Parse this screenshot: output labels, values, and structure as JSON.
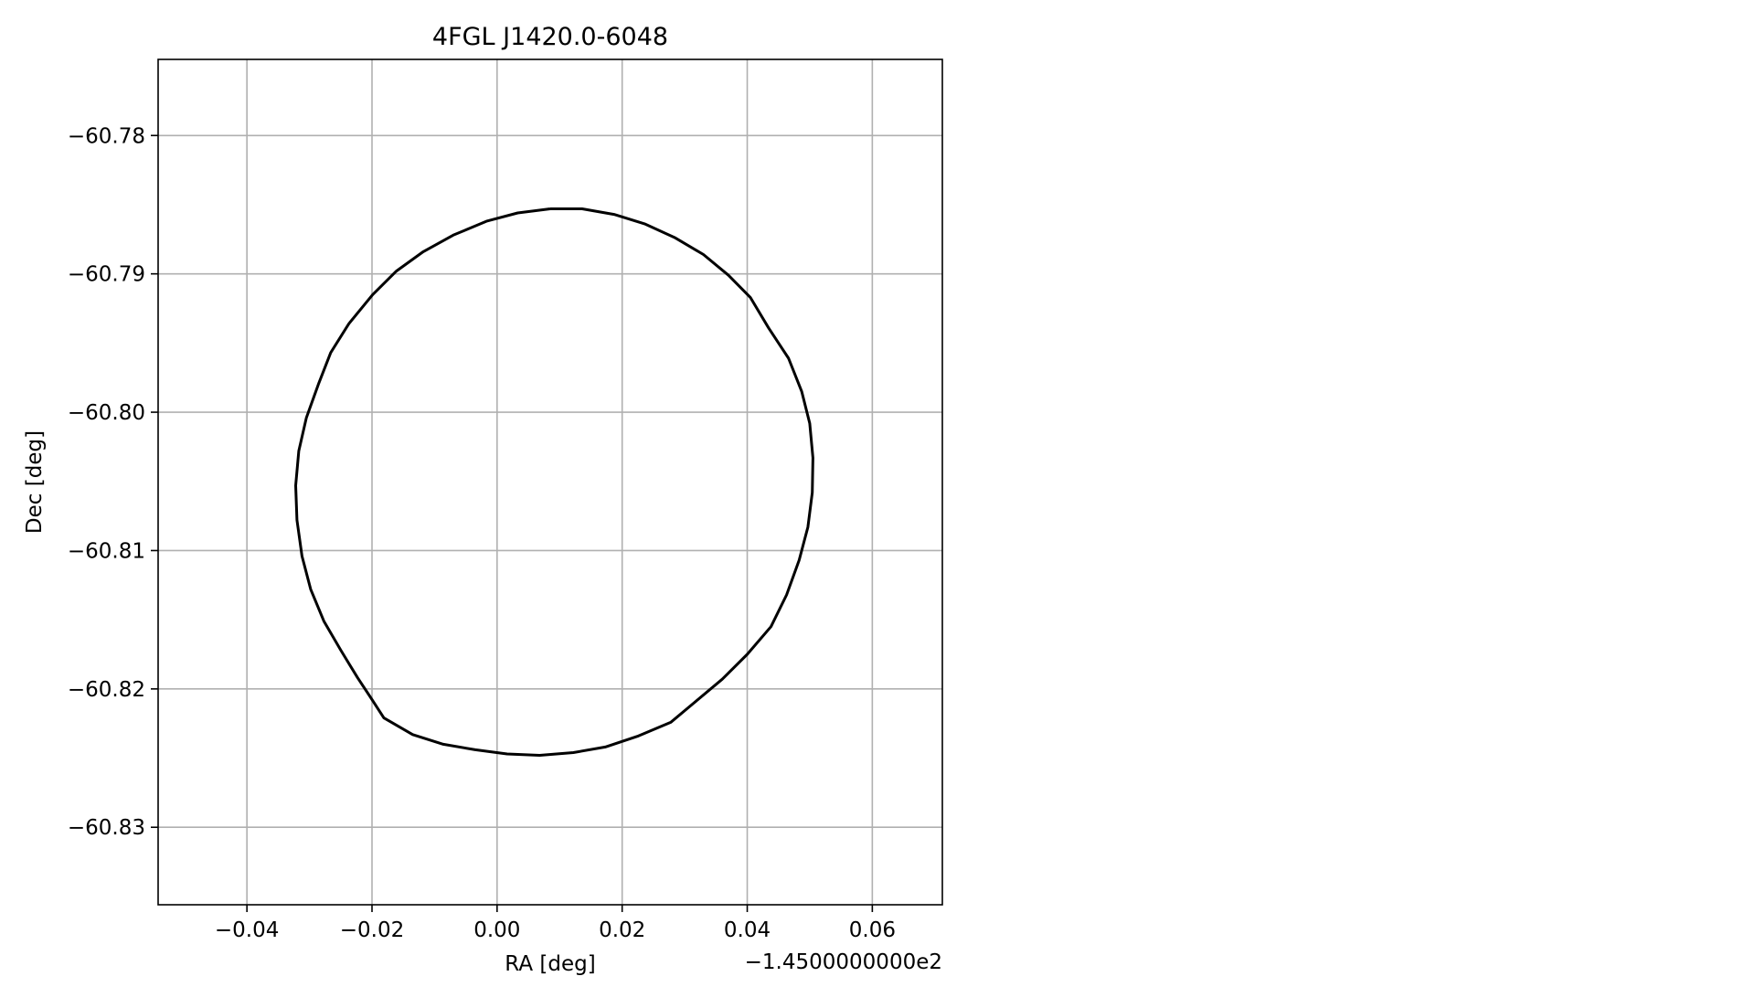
{
  "chart_data": {
    "type": "line",
    "title": "4FGL J1420.0-6048",
    "xlabel": "RA [deg]",
    "ylabel": "Dec [deg]",
    "x_offset_label": "−1.4500000000e2",
    "x_offset_value": -145.0,
    "xlim": [
      -0.0542,
      0.0712
    ],
    "ylim": [
      -60.8356,
      -60.7745
    ],
    "xticks": [
      -0.04,
      -0.02,
      0.0,
      0.02,
      0.04,
      0.06
    ],
    "xtick_labels": [
      "−0.04",
      "−0.02",
      "0.00",
      "0.02",
      "0.04",
      "0.06"
    ],
    "yticks": [
      -60.78,
      -60.79,
      -60.8,
      -60.81,
      -60.82,
      -60.83
    ],
    "ytick_labels": [
      "−60.78",
      "−60.79",
      "−60.80",
      "−60.81",
      "−60.82",
      "−60.83"
    ],
    "grid": true,
    "series": [
      {
        "color": "#000000",
        "x": [
          0.0085,
          0.0136,
          0.0187,
          0.0237,
          0.0285,
          0.033,
          0.037,
          0.0405,
          0.0434,
          0.0466,
          0.0487,
          0.05,
          0.0505,
          0.0504,
          0.0497,
          0.0483,
          0.0463,
          0.0438,
          0.04,
          0.036,
          0.0315,
          0.0278,
          0.0226,
          0.0173,
          0.0122,
          0.0068,
          0.0016,
          -0.0035,
          -0.0086,
          -0.0135,
          -0.0181,
          -0.0201,
          -0.0223,
          -0.025,
          -0.0277,
          -0.0298,
          -0.0312,
          -0.032,
          -0.0322,
          -0.0317,
          -0.0305,
          -0.0285,
          -0.0266,
          -0.0237,
          -0.0199,
          -0.0161,
          -0.0118,
          -0.007,
          -0.0017,
          0.0033,
          0.0085
        ],
        "y": [
          -60.7853,
          -60.7853,
          -60.7857,
          -60.7864,
          -60.7874,
          -60.7886,
          -60.7901,
          -60.7917,
          -60.7939,
          -60.7961,
          -60.7985,
          -60.8008,
          -60.8033,
          -60.8058,
          -60.8083,
          -60.8107,
          -60.8132,
          -60.8155,
          -60.8175,
          -60.8193,
          -60.821,
          -60.8224,
          -60.8234,
          -60.8242,
          -60.8246,
          -60.8248,
          -60.8247,
          -60.8244,
          -60.824,
          -60.8233,
          -60.8221,
          -60.8207,
          -60.8192,
          -60.8172,
          -60.8151,
          -60.8128,
          -60.8104,
          -60.8078,
          -60.8053,
          -60.8028,
          -60.8004,
          -60.7979,
          -60.7957,
          -60.7936,
          -60.7915,
          -60.7898,
          -60.7884,
          -60.7872,
          -60.7862,
          -60.7856,
          -60.7853
        ]
      }
    ]
  }
}
